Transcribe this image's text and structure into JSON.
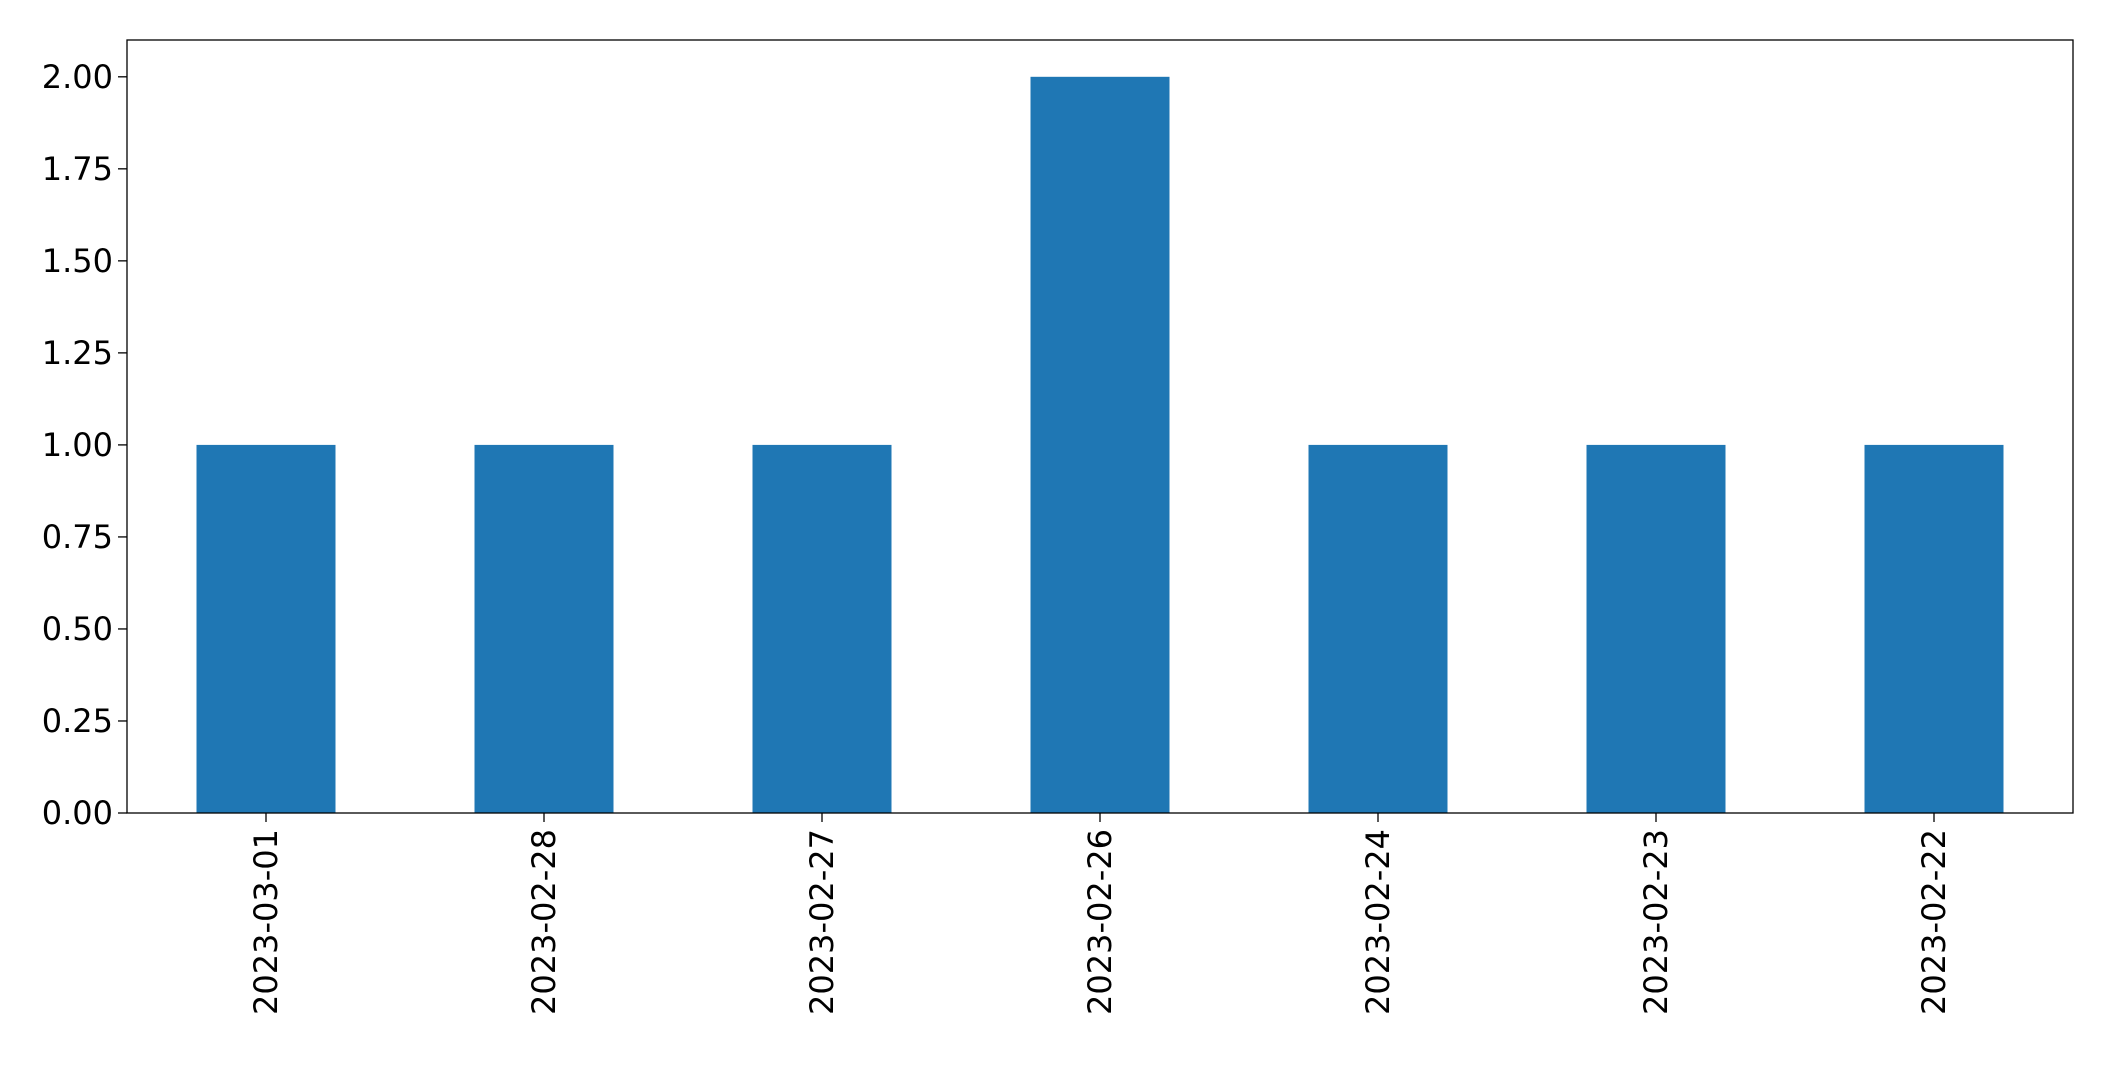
{
  "chart_data": {
    "type": "bar",
    "title": "",
    "xlabel": "",
    "ylabel": "",
    "categories": [
      "2023-03-01",
      "2023-02-28",
      "2023-02-27",
      "2023-02-26",
      "2023-02-24",
      "2023-02-23",
      "2023-02-22"
    ],
    "values": [
      1,
      1,
      1,
      2,
      1,
      1,
      1
    ],
    "ylim": [
      0,
      2.1
    ],
    "yticks": [
      0.0,
      0.25,
      0.5,
      0.75,
      1.0,
      1.25,
      1.5,
      1.75,
      2.0
    ],
    "ytick_labels": [
      "0.00",
      "0.25",
      "0.50",
      "0.75",
      "1.00",
      "1.25",
      "1.50",
      "1.75",
      "2.00"
    ],
    "bar_color": "#1f77b4",
    "grid": false,
    "legend": "none"
  }
}
